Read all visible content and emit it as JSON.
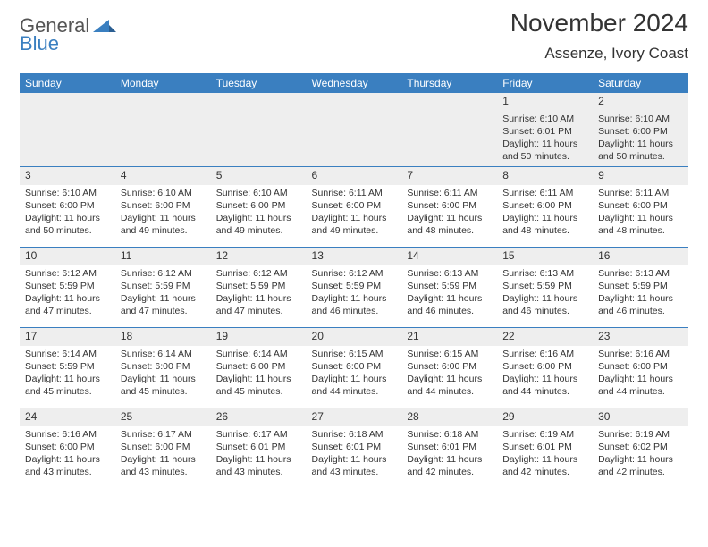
{
  "logo": {
    "text1": "General",
    "text2": "Blue",
    "icon_color": "#3a7fc0"
  },
  "title": "November 2024",
  "location": "Assenze, Ivory Coast",
  "header_bg": "#3a7fc0",
  "header_fg": "#ffffff",
  "border_color": "#3a7fc0",
  "daynum_bg": "#eeeeee",
  "text_color": "#333333",
  "day_headers": [
    "Sunday",
    "Monday",
    "Tuesday",
    "Wednesday",
    "Thursday",
    "Friday",
    "Saturday"
  ],
  "weeks": [
    [
      null,
      null,
      null,
      null,
      null,
      {
        "n": "1",
        "sunrise": "6:10 AM",
        "sunset": "6:01 PM",
        "daylight": "11 hours and 50 minutes."
      },
      {
        "n": "2",
        "sunrise": "6:10 AM",
        "sunset": "6:00 PM",
        "daylight": "11 hours and 50 minutes."
      }
    ],
    [
      {
        "n": "3",
        "sunrise": "6:10 AM",
        "sunset": "6:00 PM",
        "daylight": "11 hours and 50 minutes."
      },
      {
        "n": "4",
        "sunrise": "6:10 AM",
        "sunset": "6:00 PM",
        "daylight": "11 hours and 49 minutes."
      },
      {
        "n": "5",
        "sunrise": "6:10 AM",
        "sunset": "6:00 PM",
        "daylight": "11 hours and 49 minutes."
      },
      {
        "n": "6",
        "sunrise": "6:11 AM",
        "sunset": "6:00 PM",
        "daylight": "11 hours and 49 minutes."
      },
      {
        "n": "7",
        "sunrise": "6:11 AM",
        "sunset": "6:00 PM",
        "daylight": "11 hours and 48 minutes."
      },
      {
        "n": "8",
        "sunrise": "6:11 AM",
        "sunset": "6:00 PM",
        "daylight": "11 hours and 48 minutes."
      },
      {
        "n": "9",
        "sunrise": "6:11 AM",
        "sunset": "6:00 PM",
        "daylight": "11 hours and 48 minutes."
      }
    ],
    [
      {
        "n": "10",
        "sunrise": "6:12 AM",
        "sunset": "5:59 PM",
        "daylight": "11 hours and 47 minutes."
      },
      {
        "n": "11",
        "sunrise": "6:12 AM",
        "sunset": "5:59 PM",
        "daylight": "11 hours and 47 minutes."
      },
      {
        "n": "12",
        "sunrise": "6:12 AM",
        "sunset": "5:59 PM",
        "daylight": "11 hours and 47 minutes."
      },
      {
        "n": "13",
        "sunrise": "6:12 AM",
        "sunset": "5:59 PM",
        "daylight": "11 hours and 46 minutes."
      },
      {
        "n": "14",
        "sunrise": "6:13 AM",
        "sunset": "5:59 PM",
        "daylight": "11 hours and 46 minutes."
      },
      {
        "n": "15",
        "sunrise": "6:13 AM",
        "sunset": "5:59 PM",
        "daylight": "11 hours and 46 minutes."
      },
      {
        "n": "16",
        "sunrise": "6:13 AM",
        "sunset": "5:59 PM",
        "daylight": "11 hours and 46 minutes."
      }
    ],
    [
      {
        "n": "17",
        "sunrise": "6:14 AM",
        "sunset": "5:59 PM",
        "daylight": "11 hours and 45 minutes."
      },
      {
        "n": "18",
        "sunrise": "6:14 AM",
        "sunset": "6:00 PM",
        "daylight": "11 hours and 45 minutes."
      },
      {
        "n": "19",
        "sunrise": "6:14 AM",
        "sunset": "6:00 PM",
        "daylight": "11 hours and 45 minutes."
      },
      {
        "n": "20",
        "sunrise": "6:15 AM",
        "sunset": "6:00 PM",
        "daylight": "11 hours and 44 minutes."
      },
      {
        "n": "21",
        "sunrise": "6:15 AM",
        "sunset": "6:00 PM",
        "daylight": "11 hours and 44 minutes."
      },
      {
        "n": "22",
        "sunrise": "6:16 AM",
        "sunset": "6:00 PM",
        "daylight": "11 hours and 44 minutes."
      },
      {
        "n": "23",
        "sunrise": "6:16 AM",
        "sunset": "6:00 PM",
        "daylight": "11 hours and 44 minutes."
      }
    ],
    [
      {
        "n": "24",
        "sunrise": "6:16 AM",
        "sunset": "6:00 PM",
        "daylight": "11 hours and 43 minutes."
      },
      {
        "n": "25",
        "sunrise": "6:17 AM",
        "sunset": "6:00 PM",
        "daylight": "11 hours and 43 minutes."
      },
      {
        "n": "26",
        "sunrise": "6:17 AM",
        "sunset": "6:01 PM",
        "daylight": "11 hours and 43 minutes."
      },
      {
        "n": "27",
        "sunrise": "6:18 AM",
        "sunset": "6:01 PM",
        "daylight": "11 hours and 43 minutes."
      },
      {
        "n": "28",
        "sunrise": "6:18 AM",
        "sunset": "6:01 PM",
        "daylight": "11 hours and 42 minutes."
      },
      {
        "n": "29",
        "sunrise": "6:19 AM",
        "sunset": "6:01 PM",
        "daylight": "11 hours and 42 minutes."
      },
      {
        "n": "30",
        "sunrise": "6:19 AM",
        "sunset": "6:02 PM",
        "daylight": "11 hours and 42 minutes."
      }
    ]
  ],
  "labels": {
    "sunrise": "Sunrise:",
    "sunset": "Sunset:",
    "daylight": "Daylight:"
  }
}
